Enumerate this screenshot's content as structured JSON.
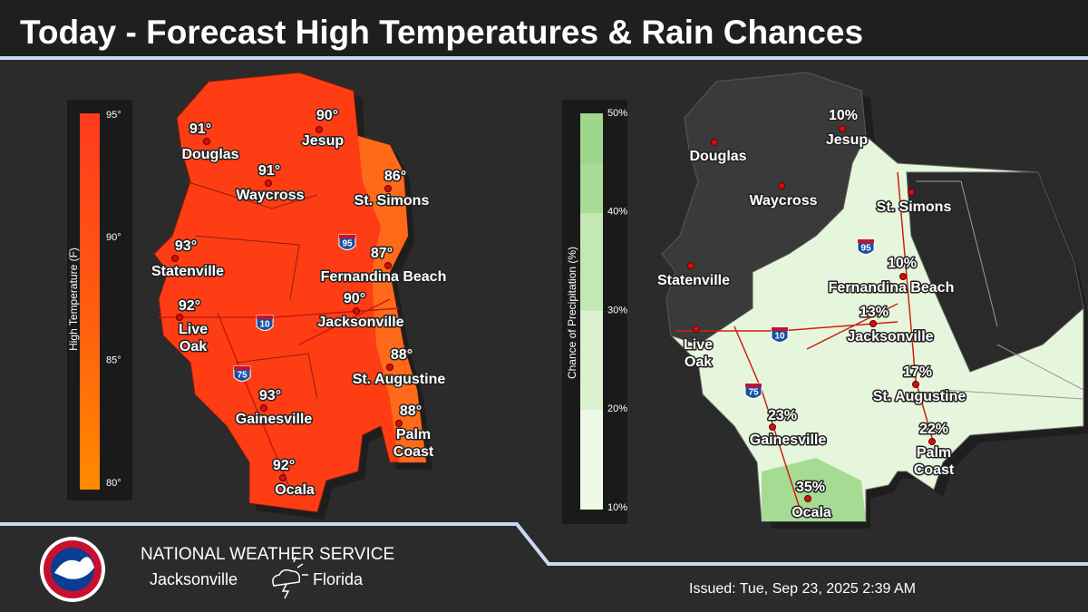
{
  "header": {
    "title": "Today - Forecast High Temperatures & Rain Chances"
  },
  "temperature_map": {
    "legend": {
      "label": "High Temperature (F)",
      "ticks": [
        "95°",
        "90°",
        "85°",
        "80°"
      ]
    },
    "cities": [
      {
        "name": "Douglas",
        "value": "91°"
      },
      {
        "name": "Jesup",
        "value": "90°"
      },
      {
        "name": "Waycross",
        "value": "91°"
      },
      {
        "name": "St. Simons",
        "value": "86°"
      },
      {
        "name": "Statenville",
        "value": "93°"
      },
      {
        "name": "Fernandina Beach",
        "value": "87°"
      },
      {
        "name": "Live Oak",
        "value": "92°"
      },
      {
        "name": "Jacksonville",
        "value": "90°"
      },
      {
        "name": "St. Augustine",
        "value": "88°"
      },
      {
        "name": "Gainesville",
        "value": "93°"
      },
      {
        "name": "Palm Coast",
        "value": "88°"
      },
      {
        "name": "Ocala",
        "value": "92°"
      }
    ]
  },
  "rain_map": {
    "legend": {
      "label": "Chance of Precipitation (%)",
      "ticks": [
        "50%",
        "40%",
        "30%",
        "20%",
        "10%"
      ]
    },
    "cities": [
      {
        "name": "Douglas"
      },
      {
        "name": "Jesup",
        "value": "10%"
      },
      {
        "name": "Waycross"
      },
      {
        "name": "St. Simons"
      },
      {
        "name": "Statenville"
      },
      {
        "name": "Fernandina Beach",
        "value": "10%"
      },
      {
        "name": "Live Oak"
      },
      {
        "name": "Jacksonville",
        "value": "13%"
      },
      {
        "name": "St. Augustine",
        "value": "17%"
      },
      {
        "name": "Gainesville",
        "value": "23%"
      },
      {
        "name": "Palm Coast",
        "value": "22%"
      },
      {
        "name": "Ocala",
        "value": "35%"
      }
    ]
  },
  "interstates": [
    "95",
    "10",
    "75"
  ],
  "footer": {
    "agency": "NATIONAL WEATHER SERVICE",
    "office_city": "Jacksonville",
    "office_state": "Florida",
    "issued": "Issued: Tue, Sep 23, 2025 2:39 AM"
  }
}
